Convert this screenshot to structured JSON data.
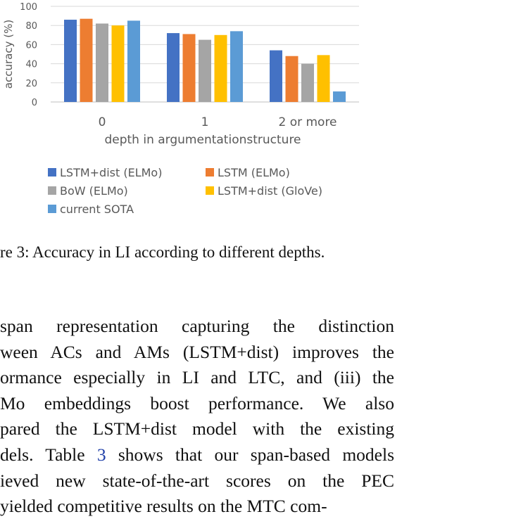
{
  "chart_data": {
    "type": "bar",
    "title": "",
    "xlabel": "depth in argumentationstructure",
    "ylabel": "accuracy (%)",
    "ylim": [
      0,
      100
    ],
    "yticks": [
      "0",
      "20",
      "40",
      "60",
      "80",
      "100"
    ],
    "categories": [
      "0",
      "1",
      "2 or more"
    ],
    "grid": true,
    "legend_position": "bottom",
    "series": [
      {
        "name": "LSTM+dist (ELMo)",
        "color": "#4472c4",
        "values": [
          86,
          72,
          54
        ]
      },
      {
        "name": "LSTM (ELMo)",
        "color": "#ed7d31",
        "values": [
          87,
          71,
          48
        ]
      },
      {
        "name": "BoW (ELMo)",
        "color": "#a5a5a5",
        "values": [
          82,
          65,
          40
        ]
      },
      {
        "name": "LSTM+dist (GloVe)",
        "color": "#ffc000",
        "values": [
          80,
          70,
          49
        ]
      },
      {
        "name": "current SOTA",
        "color": "#5b9bd5",
        "values": [
          85,
          74,
          11
        ]
      }
    ]
  },
  "caption": "re 3: Accuracy in LI according to different depths.",
  "paragraph": {
    "lines": [
      "span representation capturing the distinction",
      "ween ACs and AMs (LSTM+dist) improves the",
      "ormance especially in LI and LTC, and (iii) the",
      "Mo embeddings boost performance.  We also",
      "pared the LSTM+dist model with the existing"
    ],
    "line6_before": "dels. Table ",
    "line6_ref": "3",
    "line6_after": " shows that our span-based models",
    "line7": "ieved new state-of-the-art scores on the PEC",
    "line8": "yielded competitive results on the MTC com-"
  }
}
